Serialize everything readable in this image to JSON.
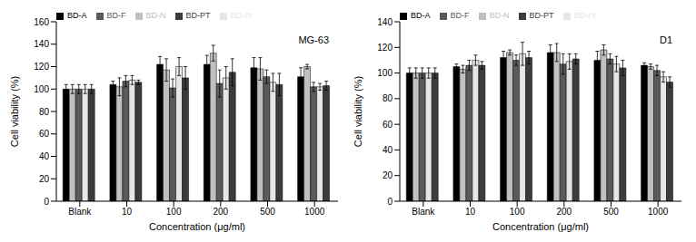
{
  "chart_data": [
    {
      "type": "bar",
      "title": "MG-63",
      "x_label": "Concentration (μg/ml)",
      "y_label": "Cell viability (%)",
      "categories": [
        "Blank",
        "10",
        "100",
        "200",
        "500",
        "1000"
      ],
      "series": [
        {
          "name": "BD-A",
          "color": "#000000",
          "values": [
            100,
            104,
            122,
            122,
            119,
            111
          ],
          "errors": [
            4,
            3,
            7,
            8,
            9,
            8
          ]
        },
        {
          "name": "BD-N",
          "color": "#c0c0c0",
          "values": [
            100,
            102,
            117,
            132,
            118,
            120
          ],
          "errors": [
            4,
            8,
            10,
            7,
            10,
            2
          ]
        },
        {
          "name": "BD-F",
          "color": "#5a5a5a",
          "values": [
            100,
            107,
            101,
            105,
            111,
            102
          ],
          "errors": [
            4,
            5,
            8,
            12,
            6,
            4
          ]
        },
        {
          "name": "BD-Pr",
          "color": "#e6e6e6",
          "values": [
            100,
            108,
            120,
            110,
            106,
            102
          ],
          "errors": [
            4,
            4,
            8,
            10,
            8,
            3
          ]
        },
        {
          "name": "BD-PT",
          "color": "#3c3c3c",
          "values": [
            100,
            106,
            110,
            115,
            104,
            103
          ],
          "errors": [
            4,
            2,
            10,
            12,
            10,
            4
          ]
        }
      ],
      "ylim": [
        0,
        160
      ],
      "yticks": [
        0,
        20,
        40,
        60,
        80,
        100,
        120,
        140,
        160
      ],
      "legend": "top"
    },
    {
      "type": "bar",
      "title": "D1",
      "x_label": "Concentration (μg/ml)",
      "y_label": "Cell viability (%)",
      "categories": [
        "Blank",
        "10",
        "100",
        "200",
        "500",
        "1000"
      ],
      "series": [
        {
          "name": "BD-A",
          "color": "#000000",
          "values": [
            100,
            105,
            112,
            116,
            110,
            106
          ],
          "errors": [
            4,
            2,
            5,
            6,
            7,
            2
          ]
        },
        {
          "name": "BD-N",
          "color": "#c0c0c0",
          "values": [
            100,
            103,
            116,
            116,
            118,
            105
          ],
          "errors": [
            4,
            3,
            2,
            7,
            4,
            2
          ]
        },
        {
          "name": "BD-F",
          "color": "#5a5a5a",
          "values": [
            100,
            106,
            110,
            107,
            111,
            102
          ],
          "errors": [
            4,
            4,
            4,
            8,
            4,
            4
          ]
        },
        {
          "name": "BD-Pr",
          "color": "#e6e6e6",
          "values": [
            100,
            110,
            115,
            109,
            107,
            97
          ],
          "errors": [
            4,
            4,
            9,
            6,
            6,
            4
          ]
        },
        {
          "name": "BD-PT",
          "color": "#3c3c3c",
          "values": [
            100,
            106,
            112,
            111,
            104,
            93
          ],
          "errors": [
            4,
            3,
            5,
            4,
            6,
            4
          ]
        }
      ],
      "ylim": [
        0,
        140
      ],
      "yticks": [
        0,
        20,
        40,
        60,
        80,
        100,
        120,
        140
      ],
      "legend": "top"
    }
  ]
}
